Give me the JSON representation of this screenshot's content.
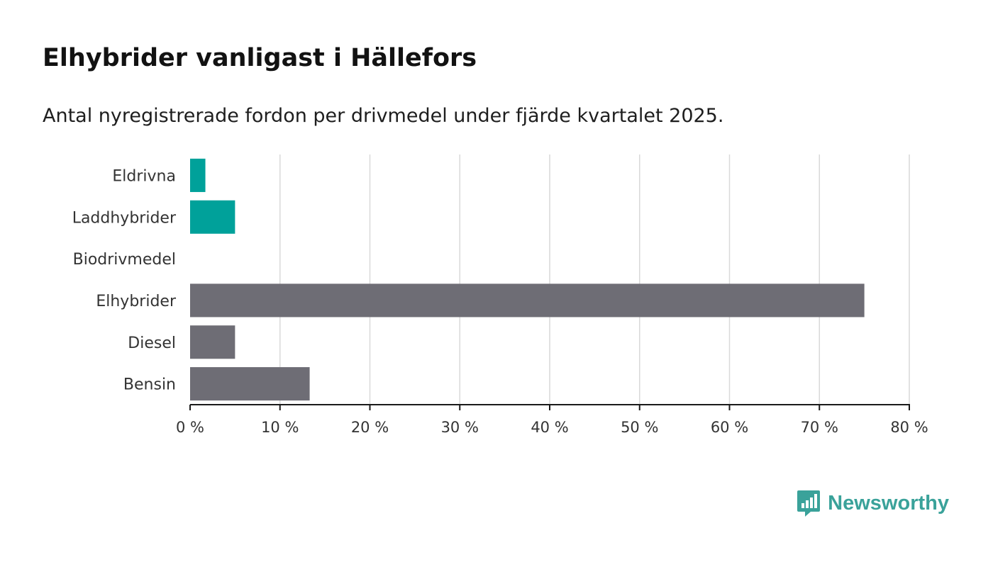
{
  "chart_data": {
    "type": "bar",
    "orientation": "horizontal",
    "title": "Elhybrider vanligast i Hällefors",
    "subtitle": "Antal nyregistrerade fordon per drivmedel under fjärde kvartalet 2025.",
    "categories": [
      "Eldrivna",
      "Laddhybrider",
      "Biodrivmedel",
      "Elhybrider",
      "Diesel",
      "Bensin"
    ],
    "values": [
      1.7,
      5,
      0,
      75,
      5,
      13.3
    ],
    "bar_colors": [
      "#00a19a",
      "#00a19a",
      "#6e6d75",
      "#6e6d75",
      "#6e6d75",
      "#6e6d75"
    ],
    "xlim": [
      0,
      80
    ],
    "xticks": [
      0,
      10,
      20,
      30,
      40,
      50,
      60,
      70,
      80
    ],
    "xtick_labels": [
      "0 %",
      "10 %",
      "20 %",
      "30 %",
      "40 %",
      "50 %",
      "60 %",
      "70 %",
      "80 %"
    ],
    "xlabel": "",
    "ylabel": "",
    "grid": true
  },
  "brand": {
    "name": "Newsworthy",
    "color": "#3aa29a"
  },
  "colors": {
    "grid": "#d9d9d9",
    "axis": "#1a1a1a"
  }
}
